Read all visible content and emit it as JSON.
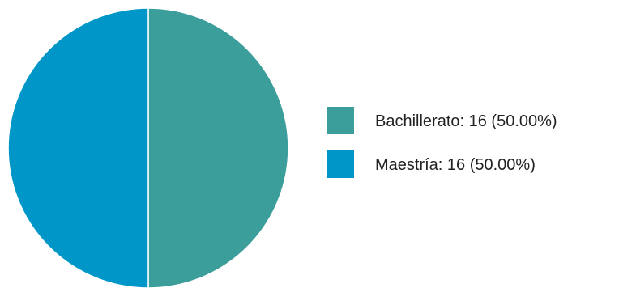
{
  "chart_data": {
    "type": "pie",
    "slices": [
      {
        "label": "Bachillerato",
        "value": 16,
        "percent": 50.0,
        "color": "#3c9e9a",
        "legend_text": "Bachillerato: 16 (50.00%)"
      },
      {
        "label": "Maestría",
        "value": 16,
        "percent": 50.0,
        "color": "#0097c8",
        "legend_text": "Maestría: 16 (50.00%)"
      }
    ],
    "start_angle": "top",
    "direction": "clockwise",
    "legend_position": "right"
  }
}
